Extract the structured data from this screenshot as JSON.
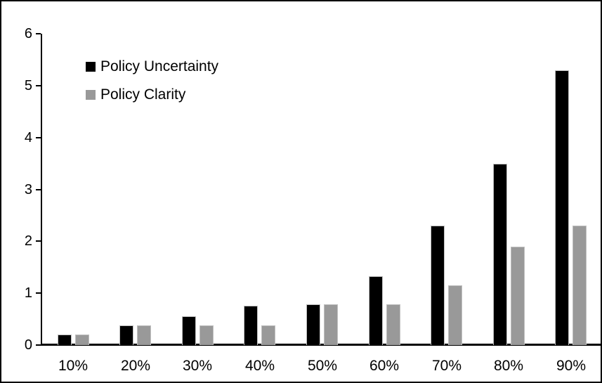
{
  "chart_data": {
    "type": "bar",
    "categories": [
      "10%",
      "20%",
      "30%",
      "40%",
      "50%",
      "60%",
      "70%",
      "80%",
      "90%"
    ],
    "series": [
      {
        "name": "Policy Uncertainty",
        "color": "#000000",
        "values": [
          0.2,
          0.38,
          0.55,
          0.76,
          0.78,
          1.33,
          2.3,
          3.5,
          5.3
        ]
      },
      {
        "name": "Policy Clarity",
        "color": "#999999",
        "values": [
          0.2,
          0.38,
          0.38,
          0.38,
          0.78,
          0.78,
          1.15,
          1.9,
          2.3
        ]
      }
    ],
    "title": "",
    "xlabel": "",
    "ylabel": "",
    "ylim": [
      0,
      6
    ],
    "yticks": [
      0,
      1,
      2,
      3,
      4,
      5,
      6
    ],
    "grid": false,
    "legend_position": "top-left-inside",
    "axis_color": "#000000",
    "bar_edge_color": "#c0c0c0",
    "frame_border_color": "#000000"
  }
}
